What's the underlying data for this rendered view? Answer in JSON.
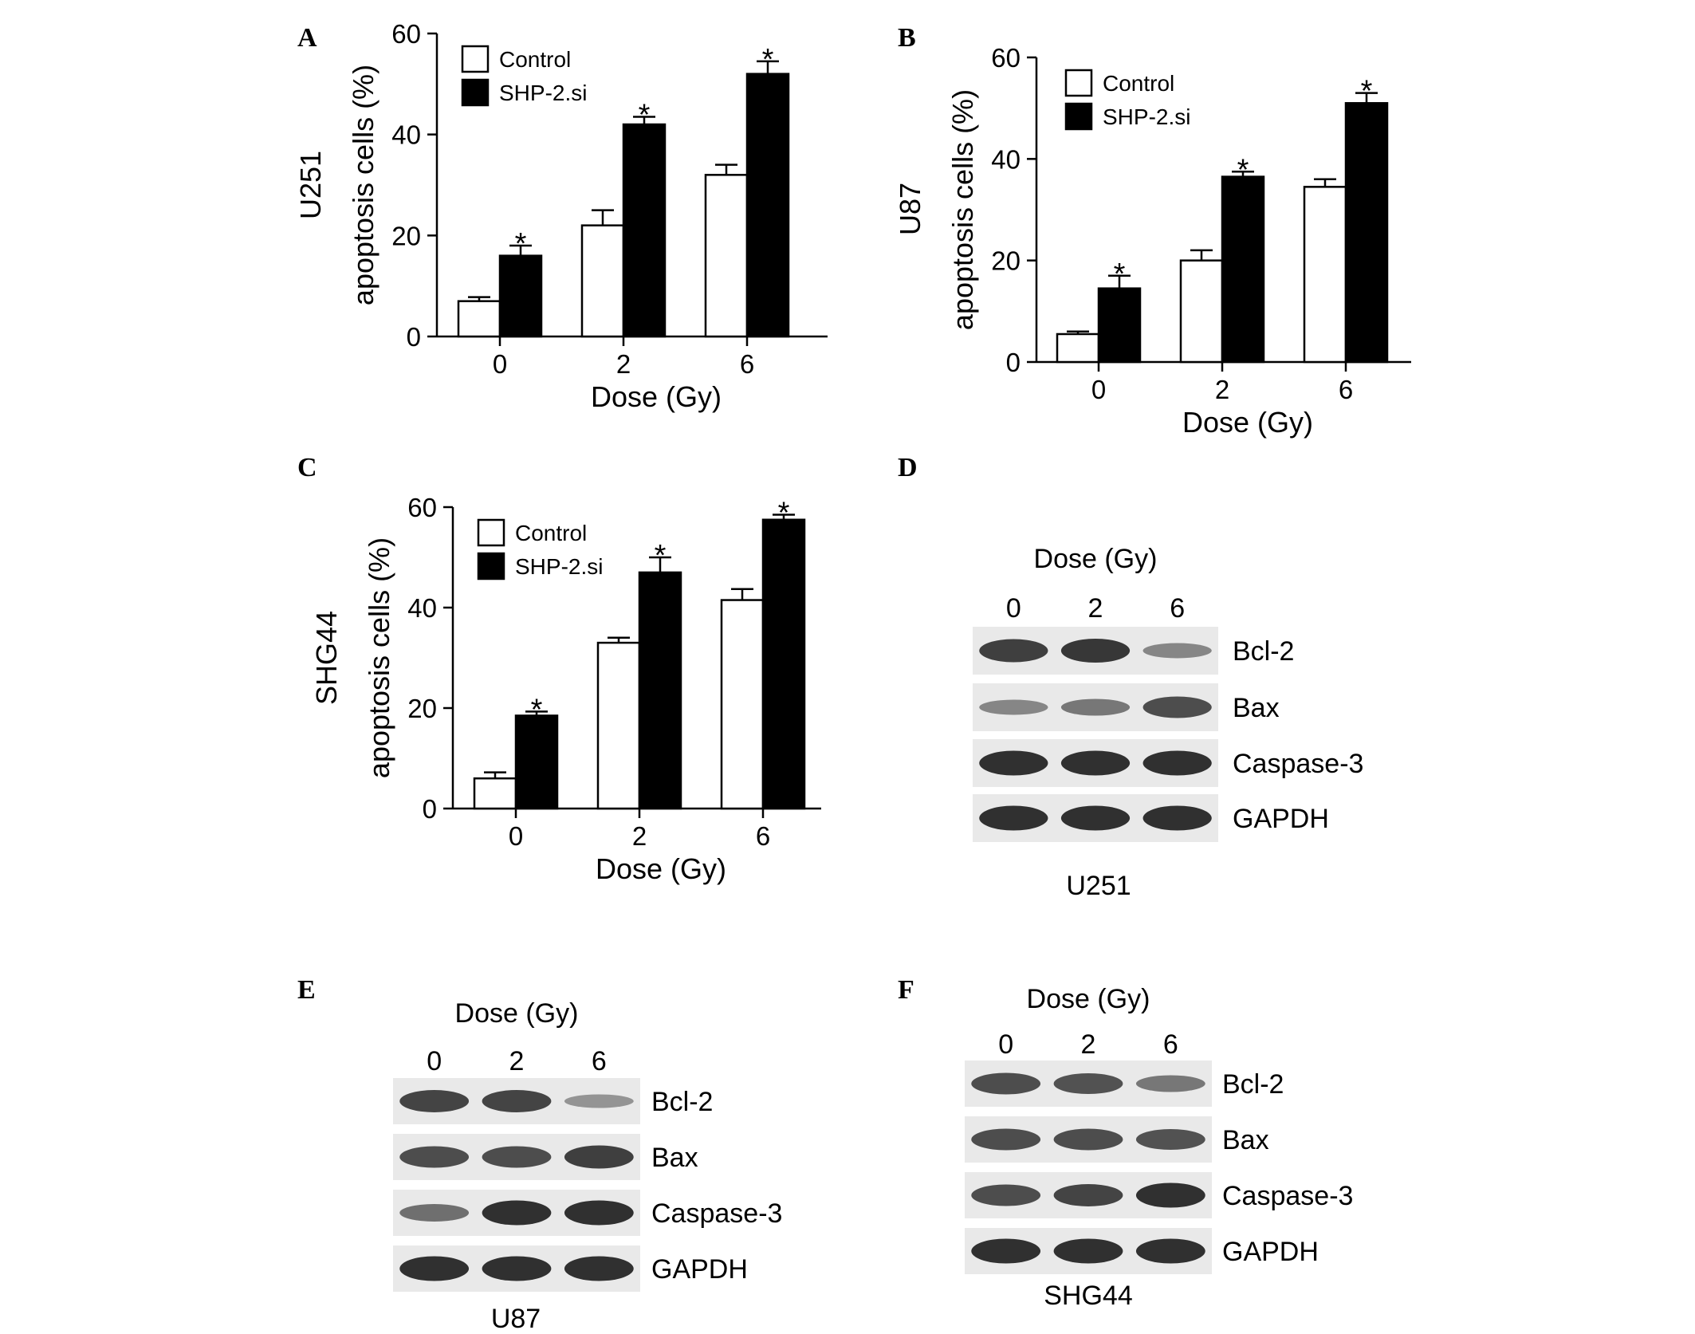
{
  "panel_letters": [
    "A",
    "B",
    "C",
    "D",
    "E",
    "F"
  ],
  "legend": {
    "control": "Control",
    "treated": "SHP-2.si"
  },
  "colors": {
    "control": "#ffffff",
    "treated": "#000000",
    "band": "#1e1e1e"
  },
  "chart_data": [
    {
      "type": "bar",
      "panel": "A",
      "side_label": "U251",
      "xlabel": "Dose (Gy)",
      "ylabel": "apoptosis cells (%)",
      "categories": [
        "0",
        "2",
        "6"
      ],
      "ylim": [
        0,
        60
      ],
      "yticks": [
        0,
        20,
        40,
        60
      ],
      "series": [
        {
          "name": "Control",
          "values": [
            7,
            22,
            32
          ],
          "errors": [
            0.8,
            3,
            2
          ]
        },
        {
          "name": "SHP-2.si",
          "values": [
            16,
            42,
            52
          ],
          "errors": [
            2,
            1.5,
            2.5
          ]
        }
      ],
      "significance": [
        "*",
        "*",
        "*"
      ],
      "legend_position": "top-left"
    },
    {
      "type": "bar",
      "panel": "B",
      "side_label": "U87",
      "xlabel": "Dose (Gy)",
      "ylabel": "apoptosis cells (%)",
      "categories": [
        "0",
        "2",
        "6"
      ],
      "ylim": [
        0,
        60
      ],
      "yticks": [
        0,
        20,
        40,
        60
      ],
      "series": [
        {
          "name": "Control",
          "values": [
            5.5,
            20,
            34.5
          ],
          "errors": [
            0.5,
            2,
            1.5
          ]
        },
        {
          "name": "SHP-2.si",
          "values": [
            14.5,
            36.5,
            51
          ],
          "errors": [
            2.5,
            1,
            2
          ]
        }
      ],
      "significance": [
        "*",
        "*",
        "*"
      ],
      "legend_position": "top-left"
    },
    {
      "type": "bar",
      "panel": "C",
      "side_label": "SHG44",
      "xlabel": "Dose (Gy)",
      "ylabel": "apoptosis cells (%)",
      "categories": [
        "0",
        "2",
        "6"
      ],
      "ylim": [
        0,
        60
      ],
      "yticks": [
        0,
        20,
        40,
        60
      ],
      "series": [
        {
          "name": "Control",
          "values": [
            6,
            33,
            41.5
          ],
          "errors": [
            1.2,
            1,
            2.2
          ]
        },
        {
          "name": "SHP-2.si",
          "values": [
            18.5,
            47,
            57.5
          ],
          "errors": [
            0.8,
            3,
            1
          ]
        }
      ],
      "significance": [
        "*",
        "*",
        "*"
      ],
      "legend_position": "top-left"
    }
  ],
  "western_blots": [
    {
      "panel": "D",
      "dose_title": "Dose (Gy)",
      "doses": [
        "0",
        "2",
        "6"
      ],
      "cell_line": "U251",
      "rows": [
        {
          "label": "Bcl-2",
          "intensity": [
            0.85,
            0.9,
            0.35
          ]
        },
        {
          "label": "Bax",
          "intensity": [
            0.35,
            0.45,
            0.75
          ]
        },
        {
          "label": "Caspase-3",
          "intensity": [
            0.95,
            0.95,
            0.95
          ]
        },
        {
          "label": "GAPDH",
          "intensity": [
            0.95,
            0.95,
            0.95
          ]
        }
      ]
    },
    {
      "panel": "E",
      "dose_title": "Dose (Gy)",
      "doses": [
        "0",
        "2",
        "6"
      ],
      "cell_line": "U87",
      "rows": [
        {
          "label": "Bcl-2",
          "intensity": [
            0.8,
            0.8,
            0.25
          ]
        },
        {
          "label": "Bax",
          "intensity": [
            0.75,
            0.75,
            0.85
          ]
        },
        {
          "label": "Caspase-3",
          "intensity": [
            0.5,
            0.95,
            0.95
          ]
        },
        {
          "label": "GAPDH",
          "intensity": [
            0.95,
            0.95,
            0.95
          ]
        }
      ]
    },
    {
      "panel": "F",
      "dose_title": "Dose (Gy)",
      "doses": [
        "0",
        "2",
        "6"
      ],
      "cell_line": "SHG44",
      "rows": [
        {
          "label": "Bcl-2",
          "intensity": [
            0.75,
            0.7,
            0.45
          ]
        },
        {
          "label": "Bax",
          "intensity": [
            0.75,
            0.75,
            0.7
          ]
        },
        {
          "label": "Caspase-3",
          "intensity": [
            0.75,
            0.8,
            0.95
          ]
        },
        {
          "label": "GAPDH",
          "intensity": [
            0.95,
            0.95,
            0.95
          ]
        }
      ]
    }
  ]
}
